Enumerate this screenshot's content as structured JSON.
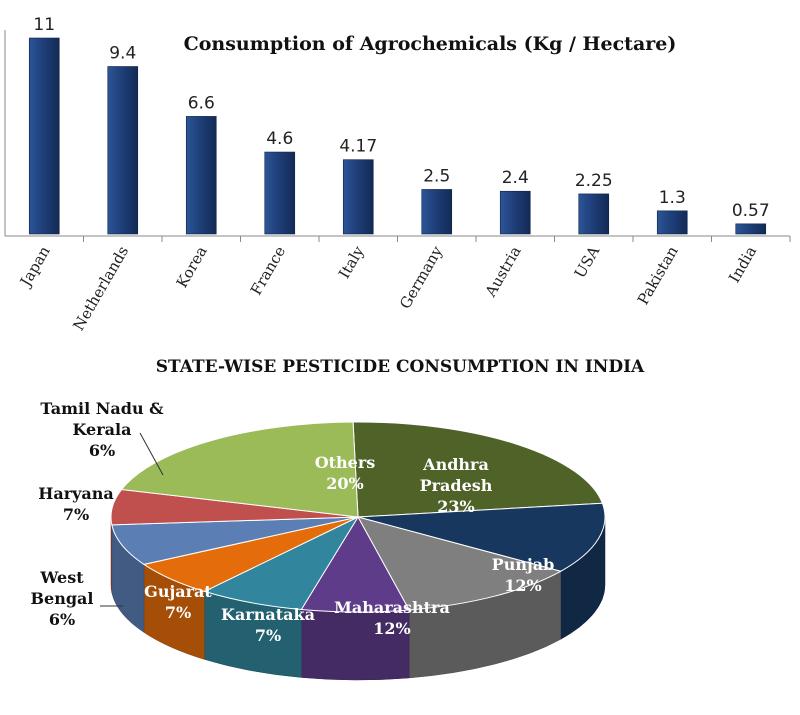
{
  "chart_data": [
    {
      "type": "bar",
      "title": "Consumption of Agrochemicals (Kg / Hectare)",
      "categories": [
        "Japan",
        "Netherlands",
        "Korea",
        "France",
        "Italy",
        "Germany",
        "Austria",
        "USA",
        "Pakistan",
        "India"
      ],
      "values": [
        11,
        9.4,
        6.6,
        4.6,
        4.17,
        2.5,
        2.4,
        2.25,
        1.3,
        0.57
      ],
      "value_labels": [
        "11",
        "9.4",
        "6.6",
        "4.6",
        "4.17",
        "2.5",
        "2.4",
        "2.25",
        "1.3",
        "0.57"
      ],
      "xlabel": "",
      "ylabel": "",
      "ylim": [
        0,
        11
      ],
      "grid": false,
      "bar_color": "#1f3f7a"
    },
    {
      "type": "pie",
      "title": "STATE-WISE PESTICIDE CONSUMPTION IN INDIA",
      "slices": [
        {
          "name": "Andhra Pradesh",
          "lines": [
            "Andhra",
            "Pradesh"
          ],
          "value": 23,
          "pct": "23%",
          "color": "#4f6228"
        },
        {
          "name": "Punjab",
          "lines": [
            "Punjab"
          ],
          "value": 12,
          "pct": "12%",
          "color": "#17375e"
        },
        {
          "name": "Maharashtra",
          "lines": [
            "Maharashtra"
          ],
          "value": 12,
          "pct": "12%",
          "color": "#7f7f7f"
        },
        {
          "name": "Karnataka",
          "lines": [
            "Karnataka"
          ],
          "value": 7,
          "pct": "7%",
          "color": "#5f3c8a"
        },
        {
          "name": "Gujarat",
          "lines": [
            "Gujarat"
          ],
          "value": 7,
          "pct": "7%",
          "color": "#31859c"
        },
        {
          "name": "West Bengal",
          "lines": [
            "West",
            "Bengal"
          ],
          "value": 6,
          "pct": "6%",
          "color": "#e46c0a"
        },
        {
          "name": "Haryana",
          "lines": [
            "Haryana"
          ],
          "value": 7,
          "pct": "7%",
          "color": "#5b7fb5"
        },
        {
          "name": "Tamil Nadu & Kerala",
          "lines": [
            "Tamil Nadu &",
            "Kerala"
          ],
          "value": 6,
          "pct": "6%",
          "color": "#c0504d"
        },
        {
          "name": "Others",
          "lines": [
            "Others"
          ],
          "value": 20,
          "pct": "20%",
          "color": "#9bbb59"
        }
      ]
    }
  ]
}
